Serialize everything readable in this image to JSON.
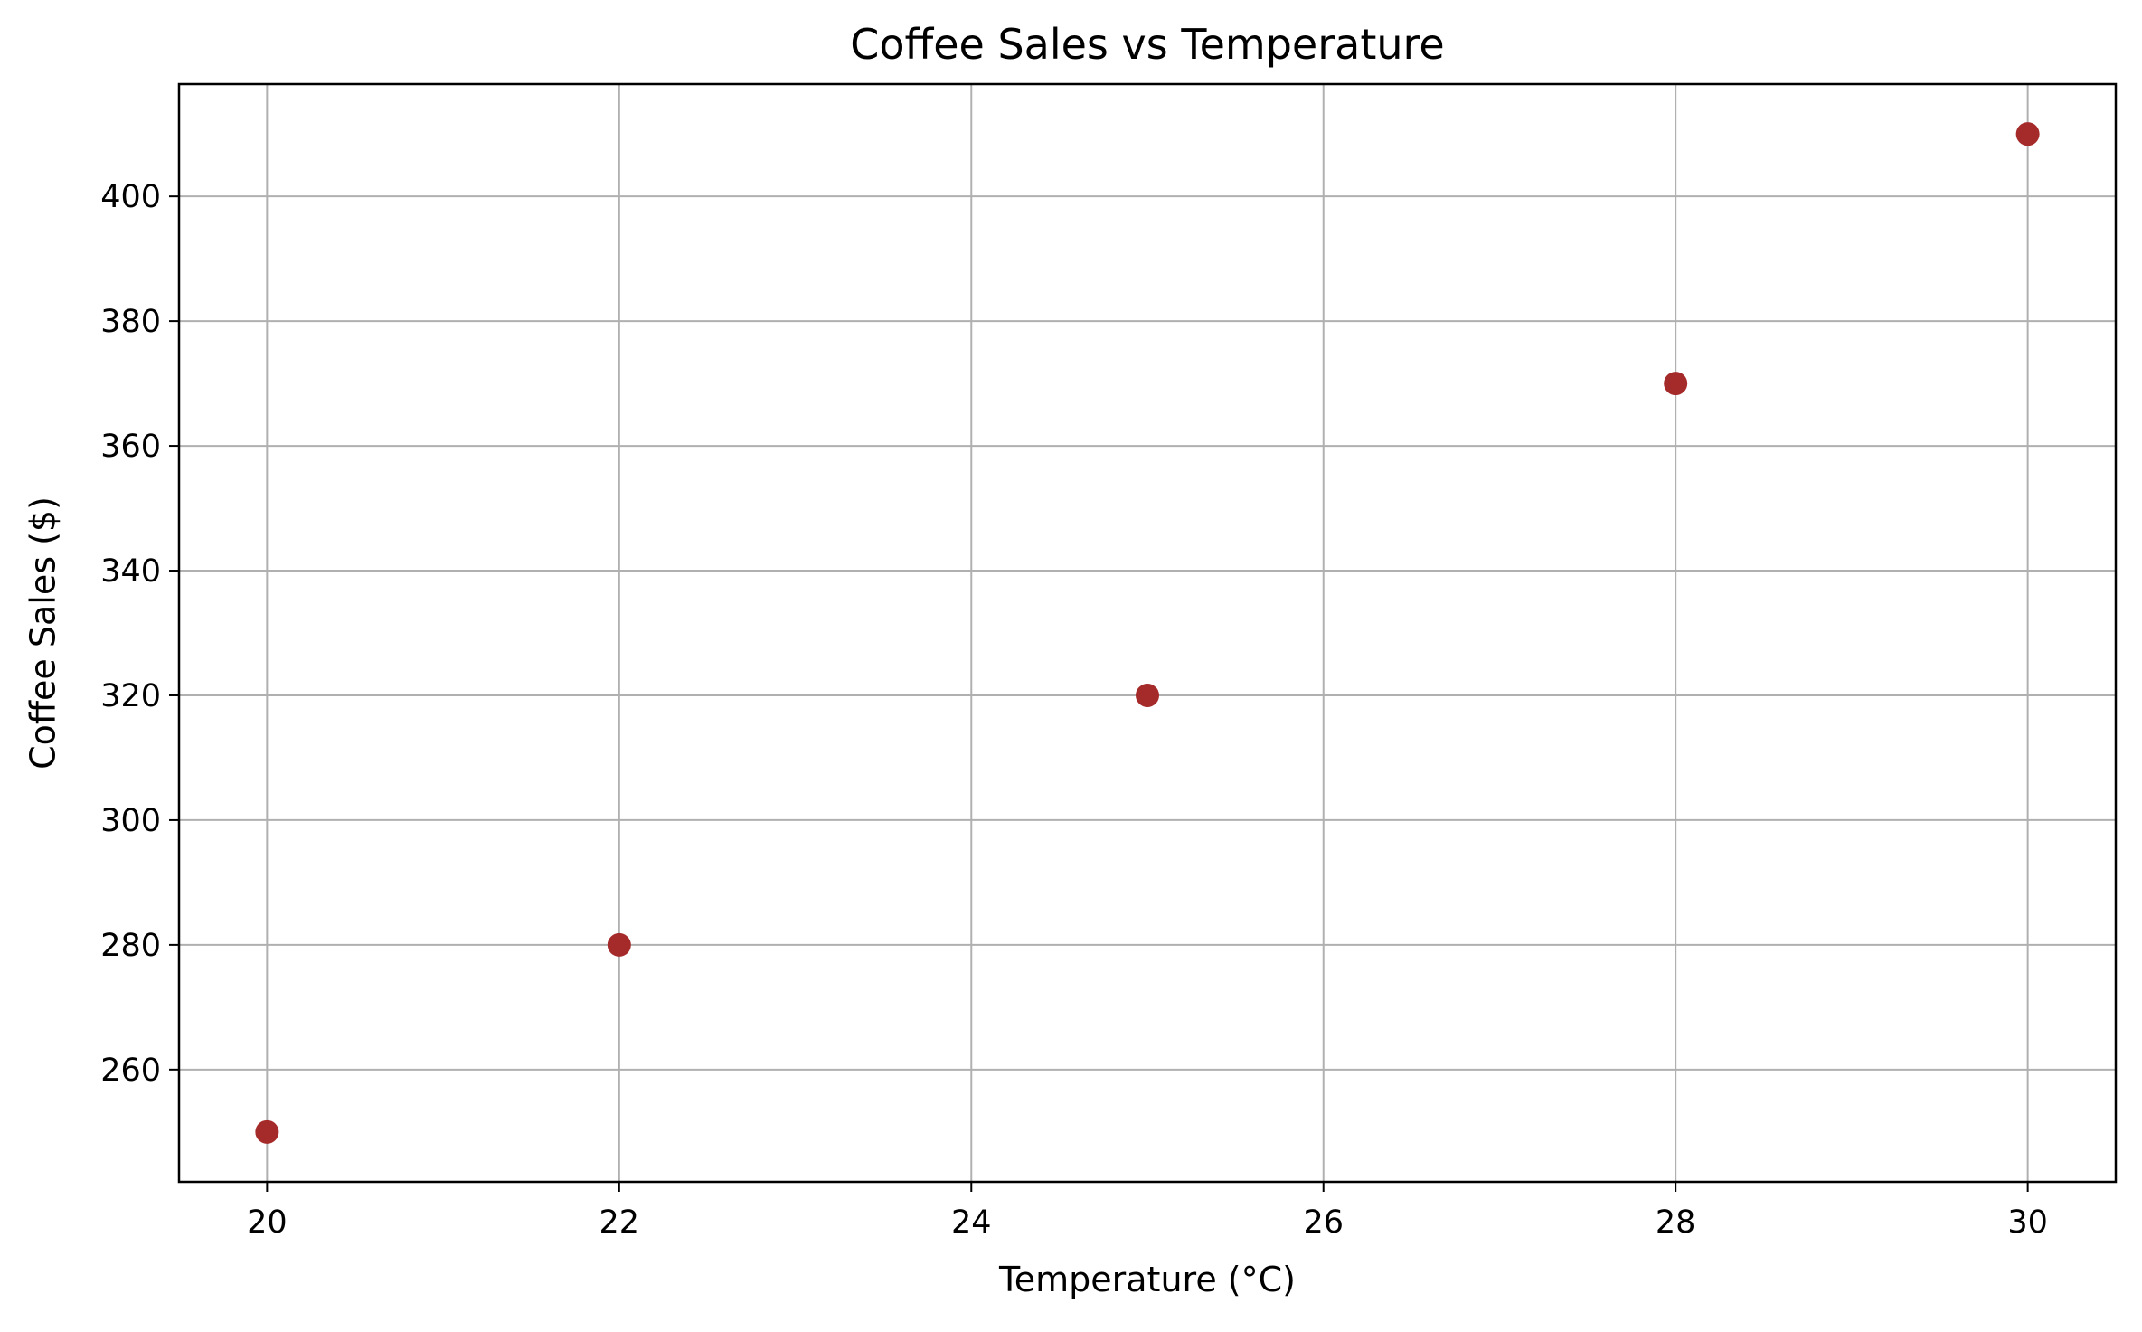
{
  "chart_data": {
    "type": "scatter",
    "title": "Coffee Sales vs Temperature",
    "xlabel": "Temperature (°C)",
    "ylabel": "Coffee Sales ($)",
    "xlim": [
      19.5,
      30.5
    ],
    "ylim": [
      242,
      418
    ],
    "xticks": [
      20,
      22,
      24,
      26,
      28,
      30
    ],
    "yticks": [
      260,
      280,
      300,
      320,
      340,
      360,
      380,
      400
    ],
    "grid": true,
    "legend": "none",
    "series": [
      {
        "color": "#a52a2a",
        "points": [
          {
            "x": 20,
            "y": 250
          },
          {
            "x": 22,
            "y": 280
          },
          {
            "x": 25,
            "y": 320
          },
          {
            "x": 28,
            "y": 370
          },
          {
            "x": 30,
            "y": 410
          }
        ]
      }
    ]
  }
}
